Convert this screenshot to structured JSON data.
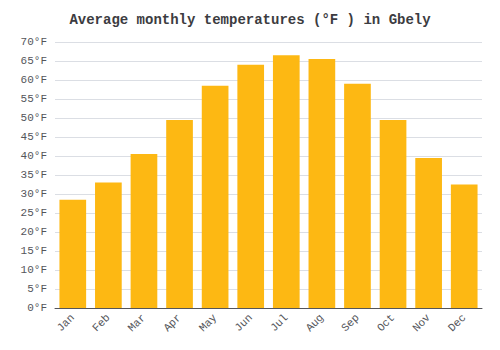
{
  "chart_data": {
    "type": "bar",
    "title": "Average monthly temperatures (°F ) in Gbely",
    "categories": [
      "Jan",
      "Feb",
      "Mar",
      "Apr",
      "May",
      "Jun",
      "Jul",
      "Aug",
      "Sep",
      "Oct",
      "Nov",
      "Dec"
    ],
    "values": [
      28.5,
      33.0,
      40.5,
      49.5,
      58.5,
      64.0,
      66.5,
      65.5,
      59.0,
      49.5,
      39.5,
      32.5
    ],
    "color": "#FDB813",
    "ylim": [
      0,
      70
    ],
    "yticks": [
      {
        "value": 0,
        "label": "0°F"
      },
      {
        "value": 5,
        "label": "5°F"
      },
      {
        "value": 10,
        "label": "10°F"
      },
      {
        "value": 15,
        "label": "15°F"
      },
      {
        "value": 20,
        "label": "20°F"
      },
      {
        "value": 25,
        "label": "25°F"
      },
      {
        "value": 30,
        "label": "30°F"
      },
      {
        "value": 35,
        "label": "35°F"
      },
      {
        "value": 40,
        "label": "40°F"
      },
      {
        "value": 45,
        "label": "45°F"
      },
      {
        "value": 50,
        "label": "50°F"
      },
      {
        "value": 55,
        "label": "55°F"
      },
      {
        "value": 60,
        "label": "60°F"
      },
      {
        "value": 65,
        "label": "65°F"
      },
      {
        "value": 70,
        "label": "70°F"
      }
    ],
    "grid": true
  }
}
